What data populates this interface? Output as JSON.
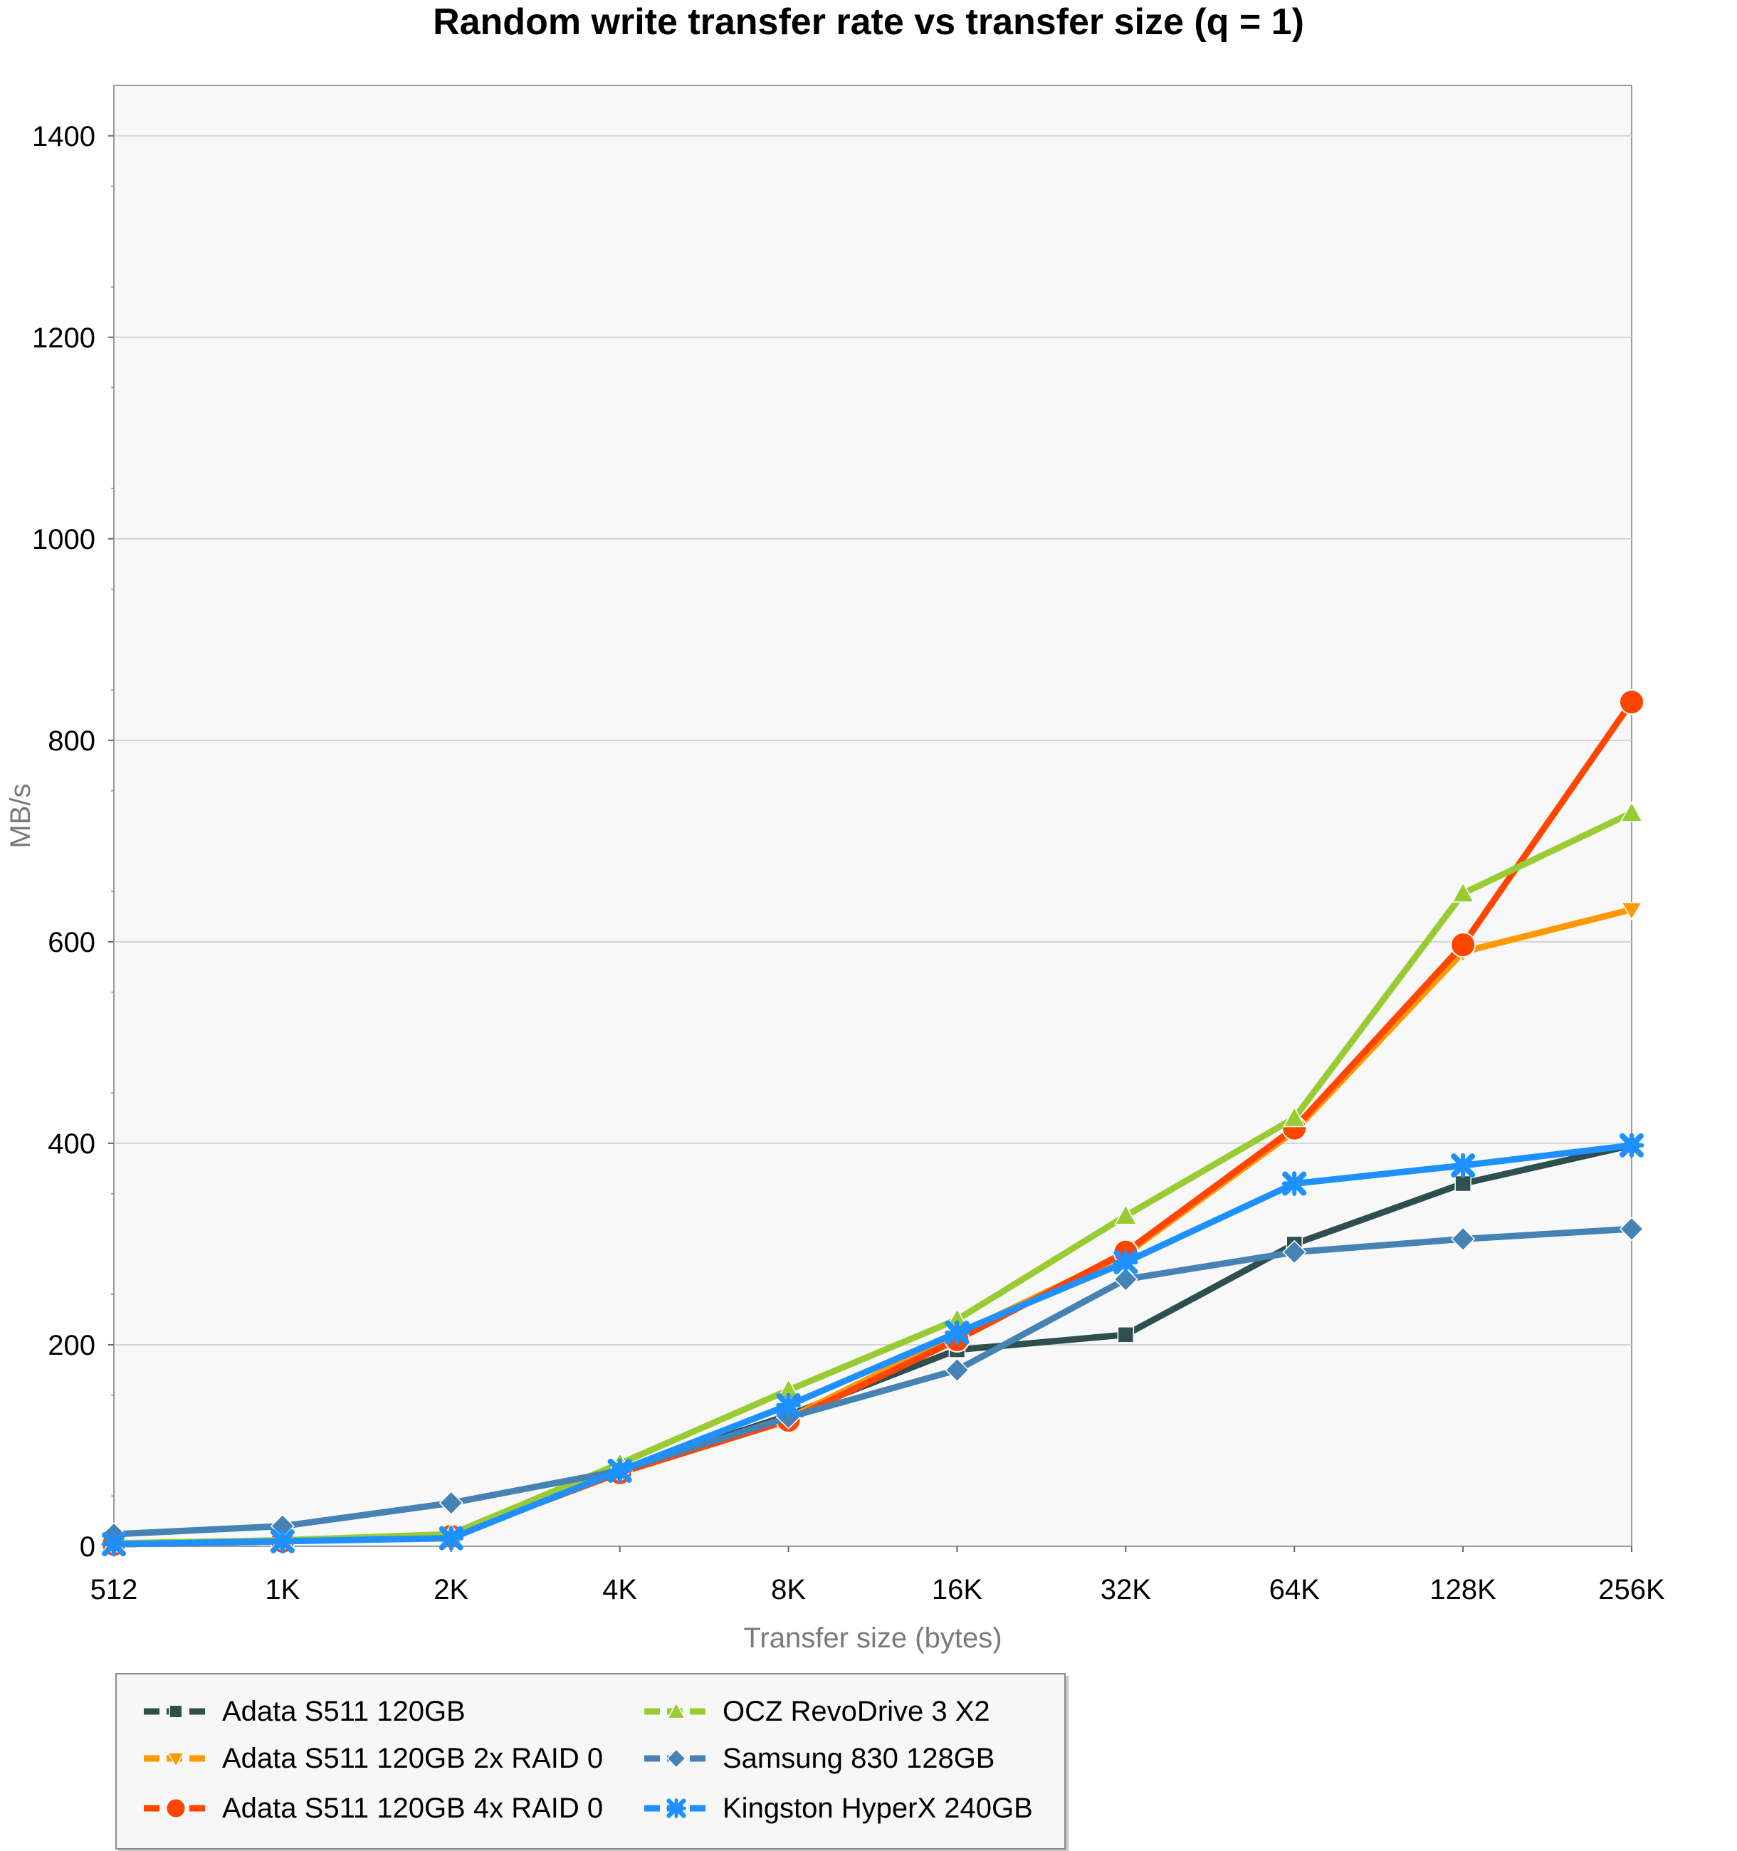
{
  "chart_data": {
    "type": "line",
    "title": "Random write transfer rate vs transfer size (q = 1)",
    "xlabel": "Transfer size (bytes)",
    "ylabel": "MB/s",
    "categories": [
      "512",
      "1K",
      "2K",
      "4K",
      "8K",
      "16K",
      "32K",
      "64K",
      "128K",
      "256K"
    ],
    "ylim": [
      0,
      1450
    ],
    "yticks": [
      0,
      200,
      400,
      600,
      800,
      1000,
      1200,
      1400
    ],
    "grid": true,
    "legend_position": "bottom-left",
    "series": [
      {
        "name": "Adata S511 120GB",
        "color": "#2f4f4f",
        "marker": "square",
        "values": [
          2,
          5,
          10,
          75,
          130,
          195,
          210,
          300,
          360,
          398
        ]
      },
      {
        "name": "Adata S511 120GB 2x RAID 0",
        "color": "#ff9900",
        "marker": "triangle-down",
        "values": [
          2,
          5,
          10,
          76,
          127,
          210,
          290,
          412,
          590,
          632
        ]
      },
      {
        "name": "Adata S511 120GB 4x RAID 0",
        "color": "#ff4500",
        "marker": "circle",
        "values": [
          2,
          5,
          10,
          73,
          125,
          205,
          292,
          415,
          597,
          838
        ]
      },
      {
        "name": "OCZ RevoDrive 3 X2",
        "color": "#99cc33",
        "marker": "triangle-up",
        "values": [
          3,
          6,
          12,
          82,
          155,
          225,
          328,
          425,
          648,
          728
        ]
      },
      {
        "name": "Samsung 830 128GB",
        "color": "#4682b4",
        "marker": "diamond",
        "values": [
          12,
          20,
          43,
          75,
          128,
          175,
          265,
          292,
          305,
          315
        ]
      },
      {
        "name": "Kingston HyperX 240GB",
        "color": "#1e90ff",
        "marker": "star",
        "values": [
          2,
          5,
          8,
          75,
          140,
          212,
          282,
          360,
          378,
          398
        ]
      }
    ]
  }
}
